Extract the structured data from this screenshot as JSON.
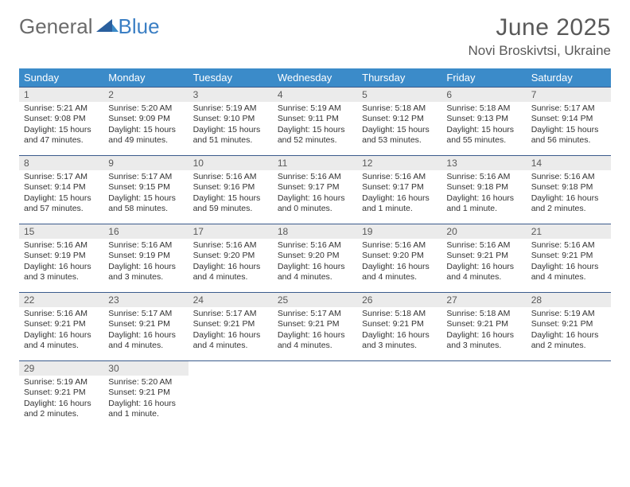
{
  "brand": {
    "word1": "General",
    "word2": "Blue"
  },
  "title": "June 2025",
  "location": "Novi Broskivtsi, Ukraine",
  "colors": {
    "header_bg": "#3b8bc9",
    "header_text": "#ffffff",
    "daynum_bg": "#ebebeb",
    "rule": "#3b5b8c",
    "text": "#333333",
    "title_text": "#595959",
    "logo_gray": "#6b6b6b",
    "logo_blue": "#3b7fc4"
  },
  "weekdays": [
    "Sunday",
    "Monday",
    "Tuesday",
    "Wednesday",
    "Thursday",
    "Friday",
    "Saturday"
  ],
  "weeks": [
    [
      {
        "n": "1",
        "sr": "Sunrise: 5:21 AM",
        "ss": "Sunset: 9:08 PM",
        "d1": "Daylight: 15 hours",
        "d2": "and 47 minutes."
      },
      {
        "n": "2",
        "sr": "Sunrise: 5:20 AM",
        "ss": "Sunset: 9:09 PM",
        "d1": "Daylight: 15 hours",
        "d2": "and 49 minutes."
      },
      {
        "n": "3",
        "sr": "Sunrise: 5:19 AM",
        "ss": "Sunset: 9:10 PM",
        "d1": "Daylight: 15 hours",
        "d2": "and 51 minutes."
      },
      {
        "n": "4",
        "sr": "Sunrise: 5:19 AM",
        "ss": "Sunset: 9:11 PM",
        "d1": "Daylight: 15 hours",
        "d2": "and 52 minutes."
      },
      {
        "n": "5",
        "sr": "Sunrise: 5:18 AM",
        "ss": "Sunset: 9:12 PM",
        "d1": "Daylight: 15 hours",
        "d2": "and 53 minutes."
      },
      {
        "n": "6",
        "sr": "Sunrise: 5:18 AM",
        "ss": "Sunset: 9:13 PM",
        "d1": "Daylight: 15 hours",
        "d2": "and 55 minutes."
      },
      {
        "n": "7",
        "sr": "Sunrise: 5:17 AM",
        "ss": "Sunset: 9:14 PM",
        "d1": "Daylight: 15 hours",
        "d2": "and 56 minutes."
      }
    ],
    [
      {
        "n": "8",
        "sr": "Sunrise: 5:17 AM",
        "ss": "Sunset: 9:14 PM",
        "d1": "Daylight: 15 hours",
        "d2": "and 57 minutes."
      },
      {
        "n": "9",
        "sr": "Sunrise: 5:17 AM",
        "ss": "Sunset: 9:15 PM",
        "d1": "Daylight: 15 hours",
        "d2": "and 58 minutes."
      },
      {
        "n": "10",
        "sr": "Sunrise: 5:16 AM",
        "ss": "Sunset: 9:16 PM",
        "d1": "Daylight: 15 hours",
        "d2": "and 59 minutes."
      },
      {
        "n": "11",
        "sr": "Sunrise: 5:16 AM",
        "ss": "Sunset: 9:17 PM",
        "d1": "Daylight: 16 hours",
        "d2": "and 0 minutes."
      },
      {
        "n": "12",
        "sr": "Sunrise: 5:16 AM",
        "ss": "Sunset: 9:17 PM",
        "d1": "Daylight: 16 hours",
        "d2": "and 1 minute."
      },
      {
        "n": "13",
        "sr": "Sunrise: 5:16 AM",
        "ss": "Sunset: 9:18 PM",
        "d1": "Daylight: 16 hours",
        "d2": "and 1 minute."
      },
      {
        "n": "14",
        "sr": "Sunrise: 5:16 AM",
        "ss": "Sunset: 9:18 PM",
        "d1": "Daylight: 16 hours",
        "d2": "and 2 minutes."
      }
    ],
    [
      {
        "n": "15",
        "sr": "Sunrise: 5:16 AM",
        "ss": "Sunset: 9:19 PM",
        "d1": "Daylight: 16 hours",
        "d2": "and 3 minutes."
      },
      {
        "n": "16",
        "sr": "Sunrise: 5:16 AM",
        "ss": "Sunset: 9:19 PM",
        "d1": "Daylight: 16 hours",
        "d2": "and 3 minutes."
      },
      {
        "n": "17",
        "sr": "Sunrise: 5:16 AM",
        "ss": "Sunset: 9:20 PM",
        "d1": "Daylight: 16 hours",
        "d2": "and 4 minutes."
      },
      {
        "n": "18",
        "sr": "Sunrise: 5:16 AM",
        "ss": "Sunset: 9:20 PM",
        "d1": "Daylight: 16 hours",
        "d2": "and 4 minutes."
      },
      {
        "n": "19",
        "sr": "Sunrise: 5:16 AM",
        "ss": "Sunset: 9:20 PM",
        "d1": "Daylight: 16 hours",
        "d2": "and 4 minutes."
      },
      {
        "n": "20",
        "sr": "Sunrise: 5:16 AM",
        "ss": "Sunset: 9:21 PM",
        "d1": "Daylight: 16 hours",
        "d2": "and 4 minutes."
      },
      {
        "n": "21",
        "sr": "Sunrise: 5:16 AM",
        "ss": "Sunset: 9:21 PM",
        "d1": "Daylight: 16 hours",
        "d2": "and 4 minutes."
      }
    ],
    [
      {
        "n": "22",
        "sr": "Sunrise: 5:16 AM",
        "ss": "Sunset: 9:21 PM",
        "d1": "Daylight: 16 hours",
        "d2": "and 4 minutes."
      },
      {
        "n": "23",
        "sr": "Sunrise: 5:17 AM",
        "ss": "Sunset: 9:21 PM",
        "d1": "Daylight: 16 hours",
        "d2": "and 4 minutes."
      },
      {
        "n": "24",
        "sr": "Sunrise: 5:17 AM",
        "ss": "Sunset: 9:21 PM",
        "d1": "Daylight: 16 hours",
        "d2": "and 4 minutes."
      },
      {
        "n": "25",
        "sr": "Sunrise: 5:17 AM",
        "ss": "Sunset: 9:21 PM",
        "d1": "Daylight: 16 hours",
        "d2": "and 4 minutes."
      },
      {
        "n": "26",
        "sr": "Sunrise: 5:18 AM",
        "ss": "Sunset: 9:21 PM",
        "d1": "Daylight: 16 hours",
        "d2": "and 3 minutes."
      },
      {
        "n": "27",
        "sr": "Sunrise: 5:18 AM",
        "ss": "Sunset: 9:21 PM",
        "d1": "Daylight: 16 hours",
        "d2": "and 3 minutes."
      },
      {
        "n": "28",
        "sr": "Sunrise: 5:19 AM",
        "ss": "Sunset: 9:21 PM",
        "d1": "Daylight: 16 hours",
        "d2": "and 2 minutes."
      }
    ],
    [
      {
        "n": "29",
        "sr": "Sunrise: 5:19 AM",
        "ss": "Sunset: 9:21 PM",
        "d1": "Daylight: 16 hours",
        "d2": "and 2 minutes."
      },
      {
        "n": "30",
        "sr": "Sunrise: 5:20 AM",
        "ss": "Sunset: 9:21 PM",
        "d1": "Daylight: 16 hours",
        "d2": "and 1 minute."
      },
      null,
      null,
      null,
      null,
      null
    ]
  ]
}
